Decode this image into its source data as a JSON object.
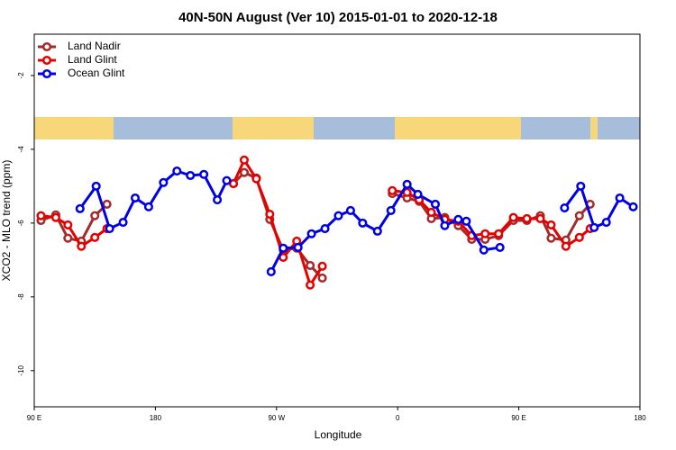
{
  "chart_data": {
    "type": "line",
    "title": "40N-50N August (Ver 10)   2015-01-01 to 2020-12-18",
    "x_label": "Longitude",
    "y_label": "XCO2 - MLO trend (ppm)",
    "xlim": [
      90,
      540
    ],
    "ylim": [
      -10.98,
      -0.88
    ],
    "xticks": [
      {
        "value": 90,
        "label": "90 E"
      },
      {
        "value": 180,
        "label": "180"
      },
      {
        "value": 270,
        "label": "90 W"
      },
      {
        "value": 360,
        "label": "0"
      },
      {
        "value": 450,
        "label": "90 E"
      },
      {
        "value": 540,
        "label": "180"
      }
    ],
    "yticks": [
      -10,
      -8,
      -6,
      -4,
      -2
    ],
    "legend": "top-left",
    "series": [
      {
        "name": "Land Nadir",
        "color": "#a52a2a",
        "x": [
          95,
          106,
          115,
          125,
          135,
          144,
          null,
          238,
          246,
          255,
          265,
          275,
          285,
          295,
          304,
          null,
          356,
          367,
          376,
          385,
          395,
          405,
          415,
          425,
          435,
          446,
          456,
          466,
          474,
          485,
          495,
          503
        ],
        "values": [
          -5.93,
          -5.78,
          -6.41,
          -6.49,
          -5.8,
          -5.49,
          null,
          -4.93,
          -4.63,
          -4.78,
          -5.9,
          -6.73,
          -6.68,
          -7.15,
          -7.49,
          null,
          -5.2,
          -5.32,
          -5.41,
          -5.88,
          -5.85,
          -6.07,
          -6.44,
          -6.44,
          -6.34,
          -5.93,
          -5.93,
          -5.8,
          -6.41,
          -6.46,
          -5.8,
          -5.49
        ]
      },
      {
        "name": "Land Glint",
        "color": "#e60000",
        "x": [
          95,
          106,
          115,
          125,
          135,
          144,
          null,
          238,
          246,
          255,
          265,
          275,
          285,
          295,
          304,
          null,
          356,
          367,
          376,
          385,
          395,
          405,
          415,
          425,
          435,
          446,
          456,
          466,
          474,
          485,
          495,
          503
        ],
        "values": [
          -5.8,
          -5.85,
          -6.05,
          -6.63,
          -6.39,
          -6.15,
          null,
          -4.93,
          -4.29,
          -4.8,
          -5.76,
          -6.93,
          -6.49,
          -7.68,
          -7.17,
          null,
          -5.12,
          -5.17,
          -5.37,
          -5.71,
          -5.9,
          -5.95,
          -6.34,
          -6.29,
          -6.29,
          -5.85,
          -5.88,
          -5.88,
          -6.05,
          -6.63,
          -6.39,
          -6.15
        ]
      },
      {
        "name": "Ocean Glint",
        "color": "#0000e6",
        "x": [
          124,
          136,
          146,
          156,
          165,
          175,
          186,
          196,
          206,
          216,
          226,
          233,
          null,
          266,
          275,
          286,
          296,
          306,
          316,
          325,
          334,
          345,
          355,
          367,
          375,
          388,
          395,
          405,
          411,
          424,
          436,
          null,
          484,
          496,
          506,
          515,
          525,
          535
        ],
        "values": [
          -5.61,
          -5.0,
          -6.15,
          -5.98,
          -5.32,
          -5.56,
          -4.9,
          -4.59,
          -4.71,
          -4.68,
          -5.37,
          -4.85,
          null,
          -7.32,
          -6.68,
          -6.66,
          -6.29,
          -6.15,
          -5.8,
          -5.66,
          -6.0,
          -6.22,
          -5.66,
          -4.95,
          -5.22,
          -5.49,
          -6.07,
          -5.9,
          -5.95,
          -6.73,
          -6.66,
          null,
          -5.59,
          -5.0,
          -6.12,
          -5.98,
          -5.32,
          -5.56
        ]
      }
    ]
  }
}
